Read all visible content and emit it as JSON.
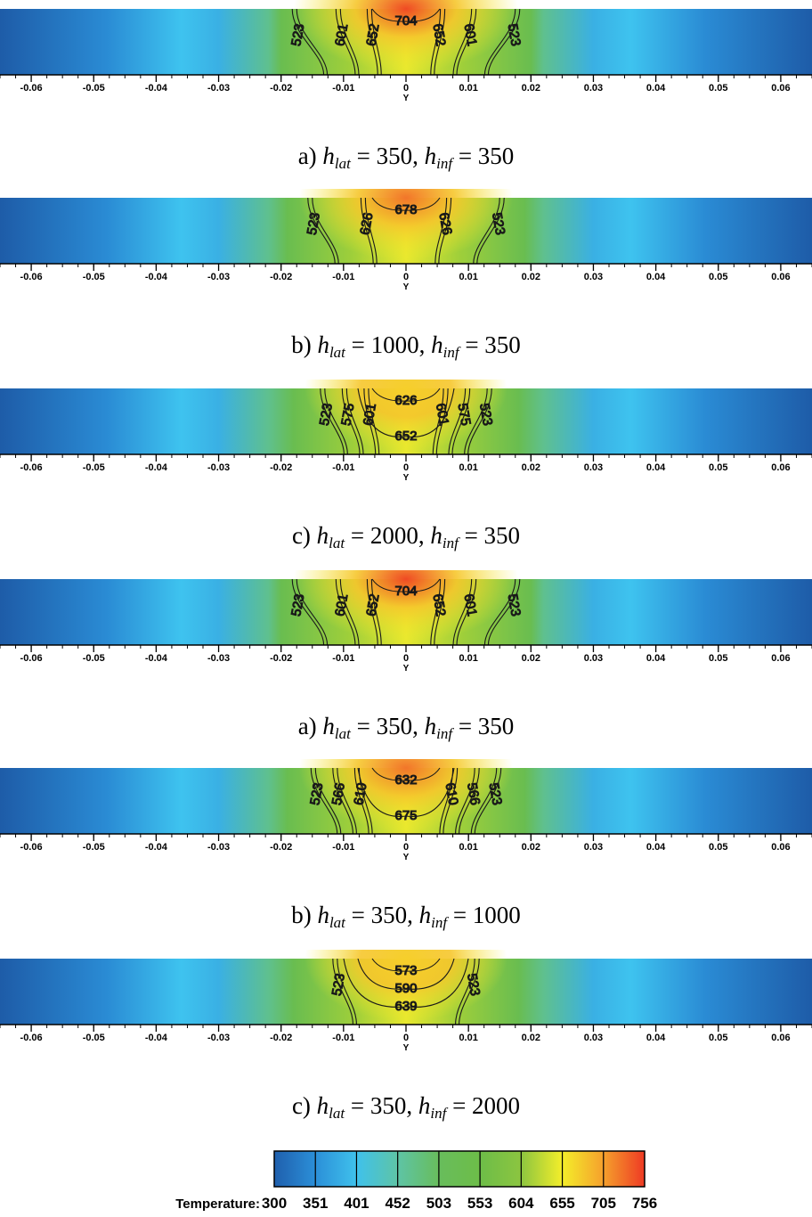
{
  "chart_data": [
    {
      "type": "heatmap",
      "caption": {
        "prefix": "a)",
        "h_lat": "350",
        "h_inf": "350"
      },
      "xlabel": "Y",
      "xlim": [
        -0.065,
        0.065
      ],
      "x_ticks": [
        "-0.06",
        "-0.05",
        "-0.04",
        "-0.03",
        "-0.02",
        "-0.01",
        "0",
        "0.01",
        "0.02",
        "0.03",
        "0.04",
        "0.05",
        "0.06"
      ],
      "core_temperature": 730,
      "hot_halfwidth": 0.02,
      "contours": [
        {
          "level": "523",
          "dx": 0.0175
        },
        {
          "level": "601",
          "dx": 0.0105
        },
        {
          "level": "652",
          "dx": 0.0055
        },
        {
          "level": "704",
          "dx": 0
        }
      ]
    },
    {
      "type": "heatmap",
      "caption": {
        "prefix": "b)",
        "h_lat": "1000",
        "h_inf": "350"
      },
      "xlabel": "Y",
      "xlim": [
        -0.065,
        0.065
      ],
      "x_ticks": [
        "-0.06",
        "-0.05",
        "-0.04",
        "-0.03",
        "-0.02",
        "-0.01",
        "0",
        "0.01",
        "0.02",
        "0.03",
        "0.04",
        "0.05",
        "0.06"
      ],
      "core_temperature": 700,
      "hot_halfwidth": 0.019,
      "contours": [
        {
          "level": "523",
          "dx": 0.015
        },
        {
          "level": "626",
          "dx": 0.0065
        },
        {
          "level": "678",
          "dx": 0
        }
      ]
    },
    {
      "type": "heatmap",
      "caption": {
        "prefix": "c)",
        "h_lat": "2000",
        "h_inf": "350"
      },
      "xlabel": "Y",
      "xlim": [
        -0.065,
        0.065
      ],
      "x_ticks": [
        "-0.06",
        "-0.05",
        "-0.04",
        "-0.03",
        "-0.02",
        "-0.01",
        "0",
        "0.01",
        "0.02",
        "0.03",
        "0.04",
        "0.05",
        "0.06"
      ],
      "core_temperature": 665,
      "hot_halfwidth": 0.018,
      "contours": [
        {
          "level": "523",
          "dx": 0.013
        },
        {
          "level": "575",
          "dx": 0.0095
        },
        {
          "level": "601",
          "dx": 0.006
        },
        {
          "level": "626",
          "dx": 0
        },
        {
          "level": "652",
          "dx": 0
        }
      ]
    },
    {
      "type": "heatmap",
      "caption": {
        "prefix": "a)",
        "h_lat": "350",
        "h_inf": "350"
      },
      "xlabel": "Y",
      "xlim": [
        -0.065,
        0.065
      ],
      "x_ticks": [
        "-0.06",
        "-0.05",
        "-0.04",
        "-0.03",
        "-0.02",
        "-0.01",
        "0",
        "0.01",
        "0.02",
        "0.03",
        "0.04",
        "0.05",
        "0.06"
      ],
      "core_temperature": 730,
      "hot_halfwidth": 0.02,
      "contours": [
        {
          "level": "523",
          "dx": 0.0175
        },
        {
          "level": "601",
          "dx": 0.0105
        },
        {
          "level": "652",
          "dx": 0.0055
        },
        {
          "level": "704",
          "dx": 0
        }
      ]
    },
    {
      "type": "heatmap",
      "caption": {
        "prefix": "b)",
        "h_lat": "350",
        "h_inf": "1000"
      },
      "xlabel": "Y",
      "xlim": [
        -0.065,
        0.065
      ],
      "x_ticks": [
        "-0.06",
        "-0.05",
        "-0.04",
        "-0.03",
        "-0.02",
        "-0.01",
        "0",
        "0.01",
        "0.02",
        "0.03",
        "0.04",
        "0.05",
        "0.06"
      ],
      "core_temperature": 700,
      "hot_halfwidth": 0.019,
      "contours": [
        {
          "level": "523",
          "dx": 0.0145
        },
        {
          "level": "566",
          "dx": 0.011
        },
        {
          "level": "610",
          "dx": 0.0075
        },
        {
          "level": "632",
          "dx": 0
        },
        {
          "level": "675",
          "dx": 0
        }
      ]
    },
    {
      "type": "heatmap",
      "caption": {
        "prefix": "c)",
        "h_lat": "350",
        "h_inf": "2000"
      },
      "xlabel": "Y",
      "xlim": [
        -0.065,
        0.065
      ],
      "x_ticks": [
        "-0.06",
        "-0.05",
        "-0.04",
        "-0.03",
        "-0.02",
        "-0.01",
        "0",
        "0.01",
        "0.02",
        "0.03",
        "0.04",
        "0.05",
        "0.06"
      ],
      "core_temperature": 655,
      "hot_halfwidth": 0.018,
      "contours": [
        {
          "level": "523",
          "dx": 0.011
        },
        {
          "level": "573",
          "dx": 0
        },
        {
          "level": "590",
          "dx": 0
        },
        {
          "level": "639",
          "dx": 0
        }
      ]
    }
  ],
  "legend": {
    "title": "Temperature:",
    "levels": [
      "300",
      "351",
      "401",
      "452",
      "503",
      "553",
      "604",
      "655",
      "705",
      "756"
    ],
    "colors": [
      "#1f5fad",
      "#2b8fd8",
      "#3fc1ec",
      "#5ec4a6",
      "#68bd5c",
      "#6dbd48",
      "#8cc540",
      "#f4ee2a",
      "#f5a02c",
      "#ee3a24"
    ]
  }
}
